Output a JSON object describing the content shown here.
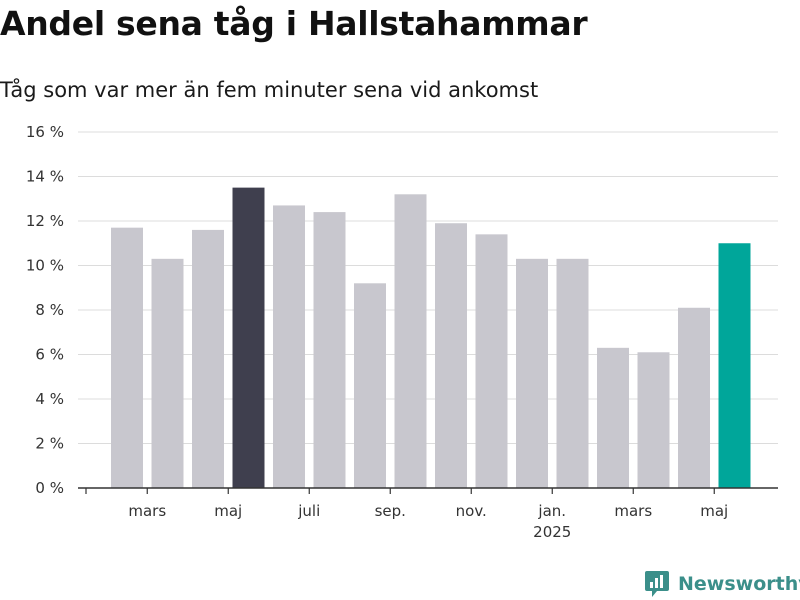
{
  "header": {
    "title": "Andel sena tåg i Hallstahammar",
    "subtitle": "Tåg som var mer än fem minuter sena vid ankomst"
  },
  "brand": {
    "name": "Newsworthy",
    "icon": "newsworthy-logo-icon"
  },
  "colors": {
    "default_bar": "#c8c7ce",
    "highlight_bar": "#3f3f4e",
    "current_bar": "#00a69a",
    "grid": "#dcdcdc",
    "axis": "#333333",
    "brand": "#3b8f8a"
  },
  "chart_data": {
    "type": "bar",
    "categories": [
      "2024-02",
      "2024-03",
      "2024-04",
      "2024-05",
      "2024-06",
      "2024-07",
      "2024-08",
      "2024-09",
      "2024-10",
      "2024-11",
      "2024-12",
      "2025-01",
      "2025-02",
      "2025-03",
      "2025-04",
      "2025-05"
    ],
    "values": [
      11.7,
      10.3,
      11.6,
      13.5,
      12.7,
      12.4,
      9.2,
      13.2,
      11.9,
      11.4,
      10.3,
      10.3,
      6.3,
      6.1,
      8.1,
      11.0
    ],
    "highlight": {
      "2024-05": "highlight_bar",
      "2025-05": "current_bar"
    },
    "ylim": [
      0,
      16
    ],
    "yticks": [
      0,
      2,
      4,
      6,
      8,
      10,
      12,
      14,
      16
    ],
    "ytick_labels": [
      "0 %",
      "2 %",
      "4 %",
      "6 %",
      "8 %",
      "10 %",
      "12 %",
      "14 %",
      "16 %"
    ],
    "xticks": [
      {
        "category": "2024-03",
        "label": "mars"
      },
      {
        "category": "2024-05",
        "label": "maj"
      },
      {
        "category": "2024-07",
        "label": "juli"
      },
      {
        "category": "2024-09",
        "label": "sep."
      },
      {
        "category": "2024-11",
        "label": "nov."
      },
      {
        "category": "2025-01",
        "label": "jan.",
        "sublabel": "2025"
      },
      {
        "category": "2025-03",
        "label": "mars"
      },
      {
        "category": "2025-05",
        "label": "maj"
      }
    ],
    "title": "Andel sena tåg i Hallstahammar",
    "subtitle": "Tåg som var mer än fem minuter sena vid ankomst",
    "xlabel": "",
    "ylabel": "",
    "grid": true,
    "legend": "none"
  }
}
